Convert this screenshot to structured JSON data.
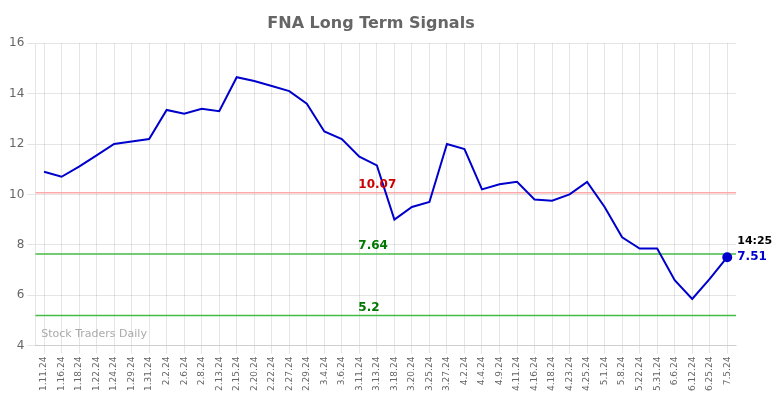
{
  "chart_data": {
    "type": "line",
    "title": "FNA Long Term Signals",
    "categories": [
      "1.11.24",
      "1.16.24",
      "1.18.24",
      "1.22.24",
      "1.24.24",
      "1.29.24",
      "1.31.24",
      "2.2.24",
      "2.6.24",
      "2.8.24",
      "2.13.24",
      "2.15.24",
      "2.20.24",
      "2.22.24",
      "2.27.24",
      "2.29.24",
      "3.4.24",
      "3.6.24",
      "3.11.24",
      "3.13.24",
      "3.18.24",
      "3.20.24",
      "3.25.24",
      "3.27.24",
      "4.2.24",
      "4.4.24",
      "4.9.24",
      "4.11.24",
      "4.16.24",
      "4.18.24",
      "4.23.24",
      "4.25.24",
      "5.1.24",
      "5.8.24",
      "5.22.24",
      "5.31.24",
      "6.6.24",
      "6.12.24",
      "6.25.24",
      "7.5.24"
    ],
    "values": [
      10.9,
      10.7,
      11.1,
      11.55,
      12.0,
      12.1,
      12.2,
      13.35,
      13.2,
      13.4,
      13.3,
      14.65,
      14.5,
      14.3,
      14.1,
      13.6,
      12.5,
      12.2,
      11.5,
      11.15,
      9.0,
      9.5,
      9.7,
      12.0,
      11.8,
      10.2,
      10.4,
      10.5,
      9.8,
      9.75,
      10.0,
      10.5,
      9.5,
      8.3,
      7.85,
      7.85,
      6.6,
      5.85,
      6.65,
      7.51
    ],
    "color": "#0000cc",
    "ylim": [
      4,
      16
    ],
    "yticks": [
      4,
      6,
      8,
      10,
      12,
      14,
      16
    ],
    "grid": true,
    "annotations": [
      {
        "type": "hline",
        "y": 10.07,
        "label": "10.07",
        "color": "#ffaaaa",
        "label_color": "#cc0000"
      },
      {
        "type": "hline",
        "y": 7.64,
        "label": "7.64",
        "color": "#44bb44",
        "label_color": "#007700"
      },
      {
        "type": "hline",
        "y": 5.2,
        "label": "5.2",
        "color": "#44bb44",
        "label_color": "#007700"
      },
      {
        "type": "point",
        "x": "7.5.24",
        "y": 7.51,
        "label": "14:25",
        "value_label": "7.51"
      },
      {
        "type": "watermark",
        "text": "Stock Traders Daily"
      }
    ]
  }
}
